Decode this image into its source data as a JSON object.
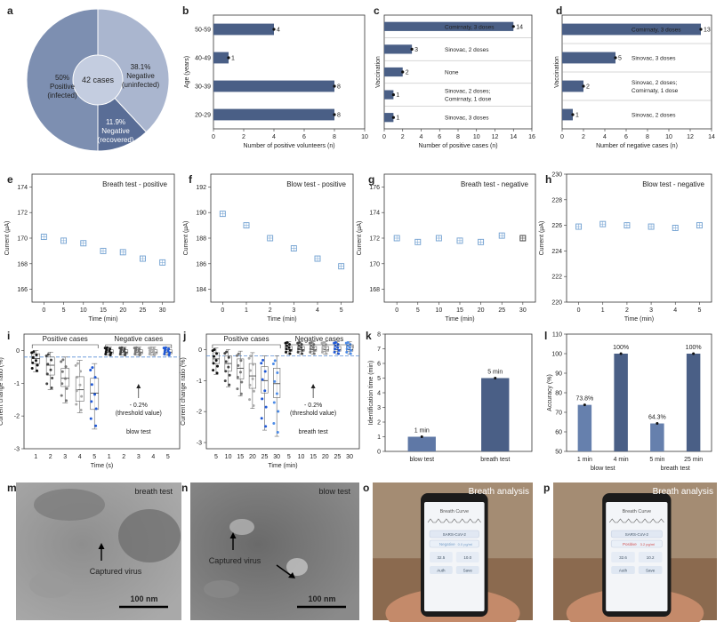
{
  "colors": {
    "navy": "#3f5275",
    "bar": "#4a5f86",
    "pie_pos": "#7d8fb1",
    "pie_negU": "#aab6cf",
    "pie_negR": "#596d96",
    "pie_center": "#c4cde0",
    "marker": "#6f9fd0",
    "grey": "#7f7f7f",
    "blue": "#1f58d6",
    "dash": "#5a8fd8"
  },
  "panels": {
    "a": "a",
    "b": "b",
    "c": "c",
    "d": "d",
    "e": "e",
    "f": "f",
    "g": "g",
    "h": "h",
    "i": "i",
    "j": "j",
    "k": "k",
    "l": "l",
    "m": "m",
    "n": "n",
    "o": "o",
    "p": "p"
  },
  "chart_data": [
    {
      "id": "a",
      "type": "pie",
      "center_label": "42 cases",
      "slices": [
        {
          "label_lines": [
            "50%",
            "Positive",
            "(infected)"
          ],
          "value": 50
        },
        {
          "label_lines": [
            "38.1%",
            "Negative",
            "(uninfected)"
          ],
          "value": 38.1
        },
        {
          "label_lines": [
            "11.9%",
            "Negative",
            "(recovered)"
          ],
          "value": 11.9
        }
      ]
    },
    {
      "id": "b",
      "type": "bar",
      "orientation": "horizontal",
      "categories": [
        "50-59",
        "40-49",
        "30-39",
        "20-29"
      ],
      "values": [
        4,
        1,
        8,
        8
      ],
      "value_labels": [
        "4",
        "1",
        "8",
        "8"
      ],
      "xlabel": "Number of positive volunteers (n)",
      "ylabel": "Age (years)",
      "xlim": [
        0,
        10
      ],
      "xticks": [
        "0",
        "2",
        "4",
        "6",
        "8",
        "10"
      ]
    },
    {
      "id": "c",
      "type": "bar",
      "orientation": "horizontal",
      "categories": [
        [
          "Comirnaty, 3 doses"
        ],
        [
          "Sinovac, 2 doses"
        ],
        [
          "None"
        ],
        [
          "Sinovac, 2 doses;",
          "Comirnaty, 1 dose"
        ],
        [
          "Sinovac, 3 doses"
        ]
      ],
      "values": [
        14,
        3,
        2,
        1,
        1
      ],
      "value_labels": [
        "14",
        "3",
        "2",
        "1",
        "1"
      ],
      "xlabel": "Number of positive cases (n)",
      "ylabel": "Vaccination",
      "xlim": [
        0,
        16
      ],
      "xticks": [
        "0",
        "2",
        "4",
        "6",
        "8",
        "10",
        "12",
        "14",
        "16"
      ]
    },
    {
      "id": "d",
      "type": "bar",
      "orientation": "horizontal",
      "categories": [
        [
          "Comirnaty, 3 doses"
        ],
        [
          "Sinovac, 3 doses"
        ],
        [
          "Sinovac, 2 doses;",
          "Comirnaty, 1 dose"
        ],
        [
          "Sinovac, 2 doses"
        ]
      ],
      "values": [
        13,
        5,
        2,
        1
      ],
      "value_labels": [
        "13",
        "5",
        "2",
        "1"
      ],
      "xlabel": "Number of negative cases (n)",
      "ylabel": "Vaccination",
      "xlim": [
        0,
        14
      ],
      "xticks": [
        "0",
        "2",
        "4",
        "6",
        "8",
        "10",
        "12",
        "14"
      ]
    },
    {
      "id": "e",
      "type": "scatter",
      "title": "Breath test - positive",
      "x": [
        0,
        5,
        10,
        15,
        20,
        25,
        30
      ],
      "y": [
        170.1,
        169.8,
        169.6,
        169.0,
        168.9,
        168.4,
        168.1
      ],
      "xlabel": "Time (min)",
      "ylabel": "Current (µA)",
      "xlim": [
        -3,
        33
      ],
      "ylim": [
        165,
        175
      ],
      "xticks": [
        0,
        5,
        10,
        15,
        20,
        25,
        30
      ],
      "yticks": [
        166,
        168,
        170,
        172,
        174
      ],
      "marker": "open-square-blue"
    },
    {
      "id": "f",
      "type": "scatter",
      "title": "Blow test - positive",
      "x": [
        0,
        1,
        2,
        3,
        4,
        5
      ],
      "y": [
        189.9,
        189.0,
        188.0,
        187.2,
        186.4,
        185.8
      ],
      "xlabel": "Time (min)",
      "ylabel": "Current (µA)",
      "xlim": [
        -0.5,
        5.5
      ],
      "ylim": [
        183,
        193
      ],
      "xticks": [
        0,
        1,
        2,
        3,
        4,
        5
      ],
      "yticks": [
        184,
        186,
        188,
        190,
        192
      ],
      "marker": "open-square-blue"
    },
    {
      "id": "g",
      "type": "scatter",
      "title": "Breath test - negative",
      "x": [
        0,
        5,
        10,
        15,
        20,
        25,
        30
      ],
      "y": [
        172.0,
        171.7,
        172.0,
        171.8,
        171.7,
        172.2,
        172.0
      ],
      "xlabel": "Time (min)",
      "ylabel": "Current (µA)",
      "xlim": [
        -3,
        33
      ],
      "ylim": [
        167,
        177
      ],
      "xticks": [
        0,
        5,
        10,
        15,
        20,
        25,
        30
      ],
      "yticks": [
        168,
        170,
        172,
        174,
        176
      ],
      "marker": "open-square-blue-last-black"
    },
    {
      "id": "h",
      "type": "scatter",
      "title": "Blow test - negative",
      "x": [
        0,
        1,
        2,
        3,
        4,
        5
      ],
      "y": [
        225.9,
        226.1,
        226.0,
        225.9,
        225.8,
        226.0
      ],
      "xlabel": "Time (min)",
      "ylabel": "Current (µA)",
      "xlim": [
        -0.5,
        5.5
      ],
      "ylim": [
        220,
        230
      ],
      "xticks": [
        0,
        1,
        2,
        3,
        4,
        5
      ],
      "yticks": [
        220,
        222,
        224,
        226,
        228,
        230
      ],
      "marker": "open-square-blue"
    },
    {
      "id": "i",
      "type": "box",
      "ylabel": "Current change ratio (%)",
      "xlabel": "Time (s)",
      "ylim": [
        -3,
        0.5
      ],
      "yticks": [
        "0",
        "-1",
        "-2",
        "-3"
      ],
      "categories": [
        "1",
        "2",
        "3",
        "4",
        "5",
        "1",
        "2",
        "3",
        "4",
        "5"
      ],
      "groups": [
        "pos",
        "pos",
        "pos",
        "pos",
        "pos",
        "neg",
        "neg",
        "neg",
        "neg",
        "neg"
      ],
      "colors": [
        "black",
        "darkgrey",
        "grey",
        "lightgrey",
        "blue",
        "black",
        "darkgrey",
        "grey",
        "lightgrey",
        "blue"
      ],
      "medians": [
        -0.25,
        -0.45,
        -0.85,
        -1.2,
        -1.3,
        -0.05,
        -0.05,
        -0.05,
        -0.05,
        -0.05
      ],
      "q1": [
        -0.1,
        -0.2,
        -0.55,
        -0.8,
        -0.85,
        0.02,
        0.02,
        0.02,
        0.02,
        0.02
      ],
      "q3": [
        -0.4,
        -0.75,
        -1.1,
        -1.55,
        -1.8,
        -0.1,
        -0.1,
        -0.1,
        -0.1,
        -0.1
      ],
      "whisker_low": [
        -0.65,
        -1.2,
        -1.6,
        -1.9,
        -2.4,
        -0.15,
        -0.15,
        -0.15,
        -0.15,
        -0.15
      ],
      "whisker_high": [
        0.0,
        -0.05,
        -0.2,
        -0.3,
        -0.4,
        0.1,
        0.1,
        0.1,
        0.1,
        0.1
      ],
      "threshold": -0.2,
      "group_labels": [
        "Positive cases",
        "Negative cases"
      ],
      "annotation_lines": [
        "- 0.2%",
        "(threshold value)"
      ],
      "test_label": "blow test"
    },
    {
      "id": "j",
      "type": "box",
      "ylabel": "Current change ratio (%)",
      "xlabel": "Time (min)",
      "ylim": [
        -3.2,
        0.5
      ],
      "yticks": [
        "0",
        "-1",
        "-2",
        "-3"
      ],
      "categories": [
        "5",
        "10",
        "15",
        "20",
        "25",
        "30",
        "5",
        "10",
        "15",
        "20",
        "25",
        "30"
      ],
      "groups": [
        "pos",
        "pos",
        "pos",
        "pos",
        "pos",
        "pos",
        "neg",
        "neg",
        "neg",
        "neg",
        "neg",
        "neg"
      ],
      "colors": [
        "black",
        "darkgrey",
        "grey",
        "lightgrey",
        "blue",
        "lightblue",
        "black",
        "darkgrey",
        "grey",
        "lightgrey",
        "blue",
        "lightblue"
      ],
      "medians": [
        -0.3,
        -0.45,
        -0.6,
        -0.85,
        -1.0,
        -1.1,
        0.0,
        0.0,
        0.0,
        0.0,
        0.0,
        0.0
      ],
      "q1": [
        -0.1,
        -0.2,
        -0.3,
        -0.45,
        -0.55,
        -0.6,
        0.1,
        0.1,
        0.1,
        0.1,
        0.1,
        0.1
      ],
      "q3": [
        -0.45,
        -0.7,
        -0.95,
        -1.25,
        -1.4,
        -1.55,
        -0.05,
        -0.05,
        -0.05,
        -0.05,
        -0.05,
        -0.05
      ],
      "whisker_low": [
        -0.8,
        -1.2,
        -1.5,
        -1.9,
        -2.6,
        -2.8,
        -0.15,
        -0.15,
        -0.15,
        -0.15,
        -0.15,
        -0.15
      ],
      "whisker_high": [
        0.05,
        0.0,
        -0.05,
        -0.1,
        -0.2,
        -0.2,
        0.25,
        0.25,
        0.25,
        0.25,
        0.25,
        0.25
      ],
      "threshold": -0.2,
      "group_labels": [
        "Positive cases",
        "Negative cases"
      ],
      "annotation_lines": [
        "- 0.2%",
        "(threshold value)"
      ],
      "test_label": "breath test"
    },
    {
      "id": "k",
      "type": "bar",
      "categories": [
        "blow test",
        "breath test"
      ],
      "values": [
        1,
        5
      ],
      "value_labels": [
        "1 min",
        "5 min"
      ],
      "ylabel": "Identification time (min)",
      "ylim": [
        0,
        8
      ],
      "yticks": [
        "0",
        "1",
        "2",
        "3",
        "4",
        "5",
        "6",
        "7",
        "8"
      ]
    },
    {
      "id": "l",
      "type": "bar",
      "categories": [
        "1 min",
        "4 min",
        "5 min",
        "25 min"
      ],
      "values": [
        73.8,
        100,
        64.3,
        100
      ],
      "value_labels": [
        "73.8%",
        "100%",
        "64.3%",
        "100%"
      ],
      "group_labels": [
        "blow test",
        "breath test"
      ],
      "ylabel": "Accuracy (%)",
      "ylim": [
        50,
        110
      ],
      "yticks": [
        "50",
        "60",
        "70",
        "80",
        "90",
        "100",
        "110"
      ]
    }
  ],
  "images": {
    "m": {
      "label": "breath test",
      "annotation": "Captured virus",
      "scale": "100 nm"
    },
    "n": {
      "label": "blow test",
      "annotation": "Captured virus",
      "scale": "100 nm"
    },
    "o": {
      "title": "Breath analysis",
      "app_title": "Breath Curve",
      "sample": "SARS-CoV-2",
      "result": "Negative",
      "result_value": "0.0 pg/ml",
      "temp": "32.5",
      "pressure": "10.0",
      "ok_label": "Auth",
      "save_label": "Save",
      "result_color": "#7aa0c8"
    },
    "p": {
      "title": "Breath analysis",
      "app_title": "Breath Curve",
      "sample": "SARS-CoV-2",
      "result": "Positive",
      "result_value": "3.2 pg/ml",
      "temp": "32.6",
      "pressure": "10.2",
      "ok_label": "Auth",
      "save_label": "Save",
      "result_color": "#d05050"
    }
  }
}
